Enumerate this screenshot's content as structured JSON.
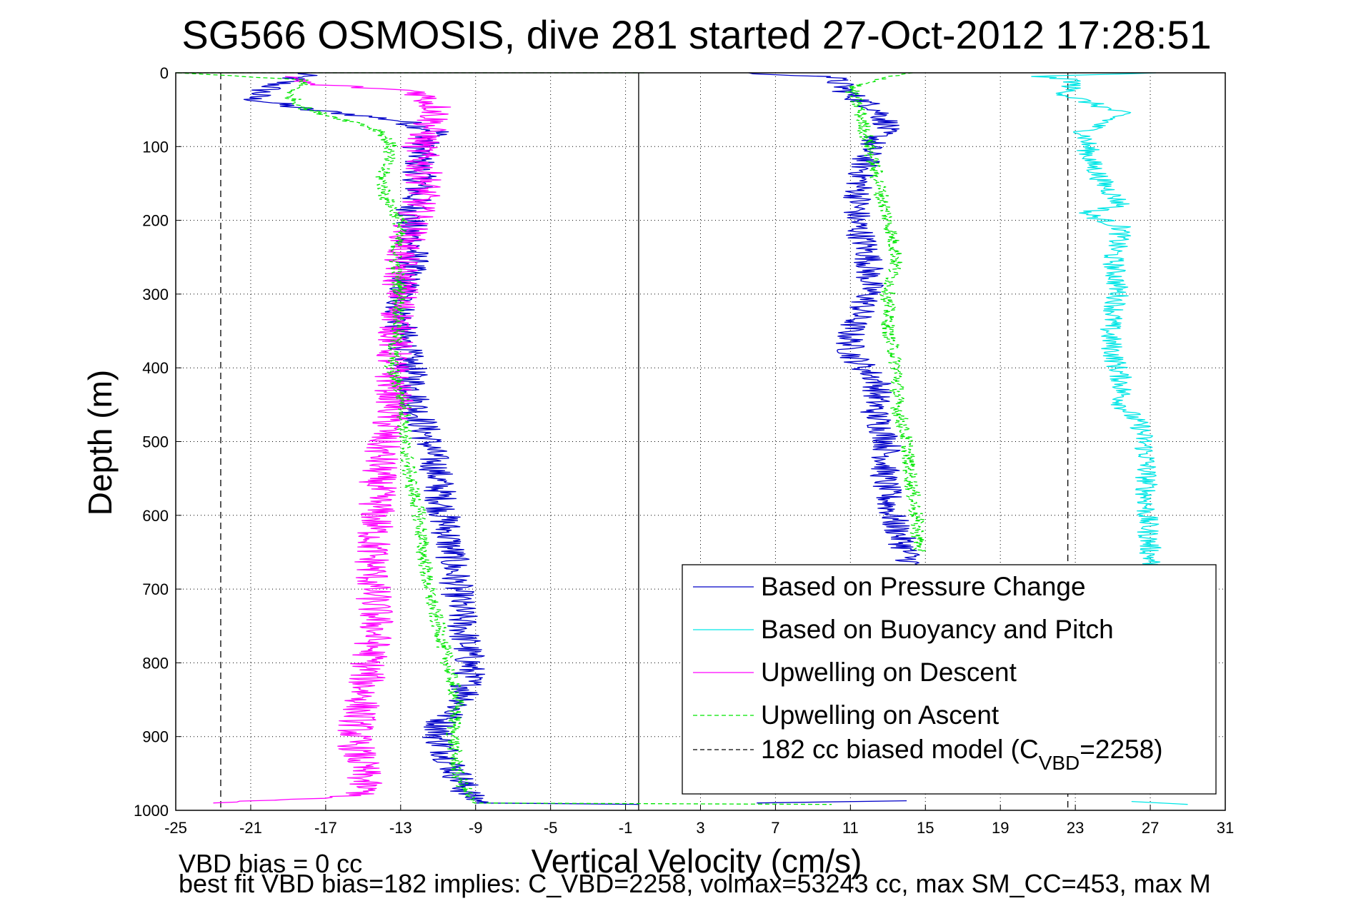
{
  "chart_data": {
    "type": "line",
    "title": "SG566 OSMOSIS, dive 281 started 27-Oct-2012 17:28:51",
    "xlabel": "Vertical Velocity (cm/s)",
    "ylabel": "Depth (m)",
    "xlim": [
      -25,
      31
    ],
    "ylim": [
      0,
      1000
    ],
    "y_reversed": true,
    "xticks": [
      "-25",
      "-21",
      "-17",
      "-13",
      "-9",
      "-5",
      "-1",
      "3",
      "7",
      "11",
      "15",
      "19",
      "23",
      "27",
      "31"
    ],
    "yticks": [
      "0",
      "100",
      "200",
      "300",
      "400",
      "500",
      "600",
      "700",
      "800",
      "900",
      "1000"
    ],
    "grid": "dotted",
    "legend_position": "bottom-right",
    "reference_lines": [
      {
        "x": -22.6,
        "style": "dashed",
        "color": "#000000"
      },
      {
        "x": -0.3,
        "style": "solid",
        "color": "#000000"
      },
      {
        "x": 22.6,
        "style": "dashed",
        "color": "#000000"
      }
    ],
    "series": [
      {
        "name": "Based on Pressure Change",
        "color": "#0000c8",
        "style": "solid",
        "noise": 0.9,
        "points": [
          [
            -18,
            0
          ],
          [
            -20,
            20
          ],
          [
            -21,
            35
          ],
          [
            -18,
            50
          ],
          [
            -16,
            55
          ],
          [
            -13,
            65
          ],
          [
            -11,
            80
          ],
          [
            -12,
            100
          ],
          [
            -12,
            150
          ],
          [
            -12.5,
            200
          ],
          [
            -12.3,
            250
          ],
          [
            -13,
            300
          ],
          [
            -13,
            350
          ],
          [
            -12.5,
            400
          ],
          [
            -12.2,
            450
          ],
          [
            -11.5,
            500
          ],
          [
            -11,
            550
          ],
          [
            -10.7,
            600
          ],
          [
            -10.3,
            650
          ],
          [
            -10,
            700
          ],
          [
            -9.7,
            750
          ],
          [
            -9.3,
            800
          ],
          [
            -9.5,
            850
          ],
          [
            -10.8,
            880
          ],
          [
            -11,
            900
          ],
          [
            -10,
            950
          ],
          [
            -9.4,
            980
          ],
          [
            -8.5,
            990
          ],
          [
            -0.3,
            992
          ]
        ]
      },
      {
        "name": "Based on Pressure Change",
        "color": "#0000c8",
        "style": "solid",
        "noise": 0.8,
        "points": [
          [
            5,
            0
          ],
          [
            10,
            5
          ],
          [
            11,
            30
          ],
          [
            12.5,
            50
          ],
          [
            13,
            70
          ],
          [
            12,
            100
          ],
          [
            11.5,
            150
          ],
          [
            11.3,
            200
          ],
          [
            12,
            250
          ],
          [
            12,
            300
          ],
          [
            11,
            350
          ],
          [
            11,
            380
          ],
          [
            12.5,
            420
          ],
          [
            12.3,
            460
          ],
          [
            13,
            500
          ],
          [
            12.8,
            550
          ],
          [
            13.2,
            600
          ],
          [
            14,
            650
          ],
          [
            14.5,
            680
          ]
        ]
      },
      {
        "name": "Based on Pressure Change",
        "color": "#0000c8",
        "style": "solid",
        "noise": 0,
        "points": [
          [
            6,
            990
          ],
          [
            14,
            987
          ]
        ]
      },
      {
        "name": "Based on Buoyancy and Pitch",
        "color": "#00e6e6",
        "style": "solid",
        "noise": 0.6,
        "points": [
          [
            27,
            0
          ],
          [
            21,
            5
          ],
          [
            23,
            10
          ],
          [
            22.5,
            30
          ],
          [
            25.5,
            55
          ],
          [
            23.5,
            80
          ],
          [
            23.8,
            120
          ],
          [
            24.5,
            150
          ],
          [
            25.5,
            180
          ],
          [
            23.5,
            190
          ],
          [
            25.5,
            210
          ],
          [
            25,
            250
          ],
          [
            25.3,
            300
          ],
          [
            24.8,
            350
          ],
          [
            25,
            380
          ],
          [
            25.5,
            420
          ],
          [
            25.5,
            450
          ],
          [
            26.5,
            480
          ],
          [
            26.8,
            520
          ],
          [
            26.8,
            600
          ],
          [
            27,
            650
          ],
          [
            27.1,
            680
          ]
        ]
      },
      {
        "name": "Based on Buoyancy and Pitch",
        "color": "#00e6e6",
        "style": "solid",
        "noise": 0,
        "points": [
          [
            26,
            988
          ],
          [
            29,
            992
          ]
        ]
      },
      {
        "name": "Upwelling on Descent",
        "color": "#ff00ff",
        "style": "solid",
        "noise": 1.0,
        "points": [
          [
            -19,
            5
          ],
          [
            -18,
            15
          ],
          [
            -12,
            25
          ],
          [
            -11,
            50
          ],
          [
            -12,
            100
          ],
          [
            -11.7,
            150
          ],
          [
            -12.3,
            200
          ],
          [
            -13,
            250
          ],
          [
            -13,
            300
          ],
          [
            -13.2,
            350
          ],
          [
            -13.5,
            400
          ],
          [
            -13.3,
            450
          ],
          [
            -14,
            500
          ],
          [
            -14.2,
            550
          ],
          [
            -14.3,
            600
          ],
          [
            -14.5,
            650
          ],
          [
            -14.5,
            700
          ],
          [
            -14.3,
            750
          ],
          [
            -14.7,
            800
          ],
          [
            -15,
            850
          ],
          [
            -15.5,
            900
          ],
          [
            -15,
            950
          ],
          [
            -15,
            980
          ],
          [
            -23,
            990
          ]
        ]
      },
      {
        "name": "Upwelling on Ascent",
        "color": "#00e600",
        "style": "dashed",
        "noise": 0.4,
        "points": [
          [
            -25,
            0
          ],
          [
            -18,
            10
          ],
          [
            -19,
            30
          ],
          [
            -18,
            50
          ],
          [
            -15,
            70
          ],
          [
            -14,
            80
          ],
          [
            -13.5,
            100
          ],
          [
            -14,
            140
          ],
          [
            -13.8,
            170
          ],
          [
            -13,
            200
          ],
          [
            -13.3,
            250
          ],
          [
            -13,
            300
          ],
          [
            -13.2,
            350
          ],
          [
            -13.5,
            400
          ],
          [
            -12.8,
            450
          ],
          [
            -12.8,
            500
          ],
          [
            -12.5,
            550
          ],
          [
            -12,
            600
          ],
          [
            -11.8,
            650
          ],
          [
            -11.5,
            700
          ],
          [
            -11,
            750
          ],
          [
            -10.5,
            800
          ],
          [
            -10,
            850
          ],
          [
            -10.2,
            900
          ],
          [
            -10,
            950
          ],
          [
            -9.2,
            990
          ],
          [
            10,
            992
          ]
        ]
      },
      {
        "name": "Upwelling on Ascent",
        "color": "#00e600",
        "style": "dashed",
        "noise": 0.4,
        "points": [
          [
            14,
            0
          ],
          [
            11,
            20
          ],
          [
            11.5,
            50
          ],
          [
            12,
            100
          ],
          [
            12.5,
            150
          ],
          [
            13,
            200
          ],
          [
            13.5,
            250
          ],
          [
            13,
            300
          ],
          [
            13,
            350
          ],
          [
            13.5,
            400
          ],
          [
            13.5,
            450
          ],
          [
            14,
            500
          ],
          [
            14.2,
            550
          ],
          [
            14.5,
            600
          ],
          [
            14.7,
            650
          ]
        ]
      },
      {
        "name": "Upwelling on Ascent",
        "color": "#00e600",
        "style": "dashed",
        "noise": 0,
        "points": [
          [
            0,
            0
          ],
          [
            -25,
            0
          ]
        ]
      }
    ],
    "legend": [
      {
        "label": "Based on Pressure Change",
        "color": "#0000c8",
        "style": "solid"
      },
      {
        "label": "Based on Buoyancy and Pitch",
        "color": "#00e6e6",
        "style": "solid"
      },
      {
        "label": "Upwelling on Descent",
        "color": "#ff00ff",
        "style": "solid"
      },
      {
        "label": "Upwelling on Ascent",
        "color": "#00e600",
        "style": "dashed"
      },
      {
        "label": "182 cc biased model (C",
        "label_sub": "VBD",
        "label_suffix": "=2258)",
        "color": "#000000",
        "style": "dashed"
      }
    ],
    "annotations": [
      "VBD bias = 0 cc",
      "best fit VBD bias=182 implies: C_VBD=2258, volmax=53243 cc, max SM_CC=453, max M"
    ]
  }
}
